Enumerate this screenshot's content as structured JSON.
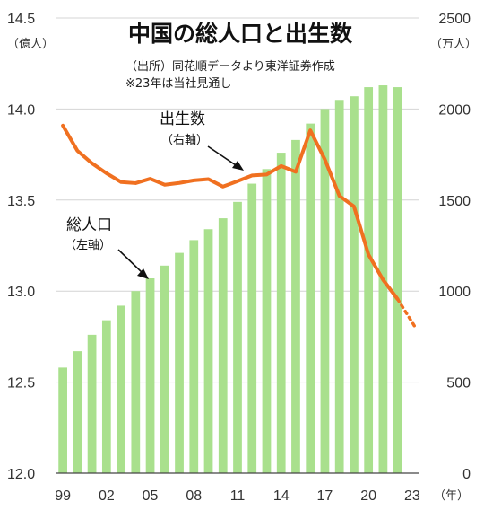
{
  "chart_data": {
    "type": "bar+line",
    "title": "中国の総人口と出生数",
    "source_note": "（出所）同花順データより東洋証券作成",
    "estimate_note": "※23年は当社見通し",
    "left_axis": {
      "unit": "（億人）",
      "min": 12.0,
      "max": 14.5,
      "ticks": [
        "12.0",
        "12.5",
        "13.0",
        "13.5",
        "14.0",
        "14.5"
      ]
    },
    "right_axis": {
      "unit": "（万人）",
      "min": 0,
      "max": 2500,
      "ticks": [
        "0",
        "500",
        "1000",
        "1500",
        "2000",
        "2500"
      ]
    },
    "x_unit": "（年）",
    "x_ticks": [
      "99",
      "02",
      "05",
      "08",
      "11",
      "14",
      "17",
      "20",
      "23"
    ],
    "years": [
      1999,
      2000,
      2001,
      2002,
      2003,
      2004,
      2005,
      2006,
      2007,
      2008,
      2009,
      2010,
      2011,
      2012,
      2013,
      2014,
      2015,
      2016,
      2017,
      2018,
      2019,
      2020,
      2021,
      2022,
      2023
    ],
    "series": [
      {
        "name": "総人口",
        "axis_label": "（左軸）",
        "kind": "bar",
        "color": "#a9e08d",
        "values": [
          12.58,
          12.67,
          12.76,
          12.84,
          12.92,
          13.0,
          13.07,
          13.14,
          13.21,
          13.28,
          13.34,
          13.4,
          13.49,
          13.59,
          13.67,
          13.76,
          13.83,
          13.92,
          14.0,
          14.05,
          14.07,
          14.12,
          14.13,
          14.12,
          null
        ]
      },
      {
        "name": "出生数",
        "axis_label": "（右軸）",
        "kind": "line",
        "color": "#f07020",
        "values": [
          1909,
          1771,
          1702,
          1647,
          1599,
          1593,
          1617,
          1584,
          1594,
          1608,
          1615,
          1574,
          1604,
          1635,
          1640,
          1687,
          1655,
          1883,
          1723,
          1523,
          1465,
          1200,
          1062,
          956,
          null
        ],
        "estimate_value_2023": 790
      }
    ]
  }
}
